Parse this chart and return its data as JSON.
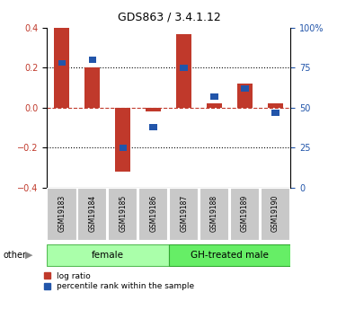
{
  "title": "GDS863 / 3.4.1.12",
  "samples": [
    "GSM19183",
    "GSM19184",
    "GSM19185",
    "GSM19186",
    "GSM19187",
    "GSM19188",
    "GSM19189",
    "GSM19190"
  ],
  "log_ratio": [
    0.4,
    0.2,
    -0.32,
    -0.02,
    0.37,
    0.02,
    0.12,
    0.02
  ],
  "percentile_rank": [
    78,
    80,
    25,
    38,
    75,
    57,
    62,
    47
  ],
  "bar_color_red": "#C0392B",
  "bar_color_blue": "#2255AA",
  "dashed_line_color": "#C0392B",
  "ylim_left": [
    -0.4,
    0.4
  ],
  "ylim_right": [
    0,
    100
  ],
  "yticks_left": [
    -0.4,
    -0.2,
    0.0,
    0.2,
    0.4
  ],
  "yticks_right": [
    0,
    25,
    50,
    75,
    100
  ],
  "ytick_labels_right": [
    "0",
    "25",
    "50",
    "75",
    "100%"
  ],
  "female_color": "#AAFFAA",
  "gh_color": "#66EE66",
  "sample_box_color": "#C8C8C8",
  "other_label": "other",
  "legend_items": [
    "log ratio",
    "percentile rank within the sample"
  ]
}
